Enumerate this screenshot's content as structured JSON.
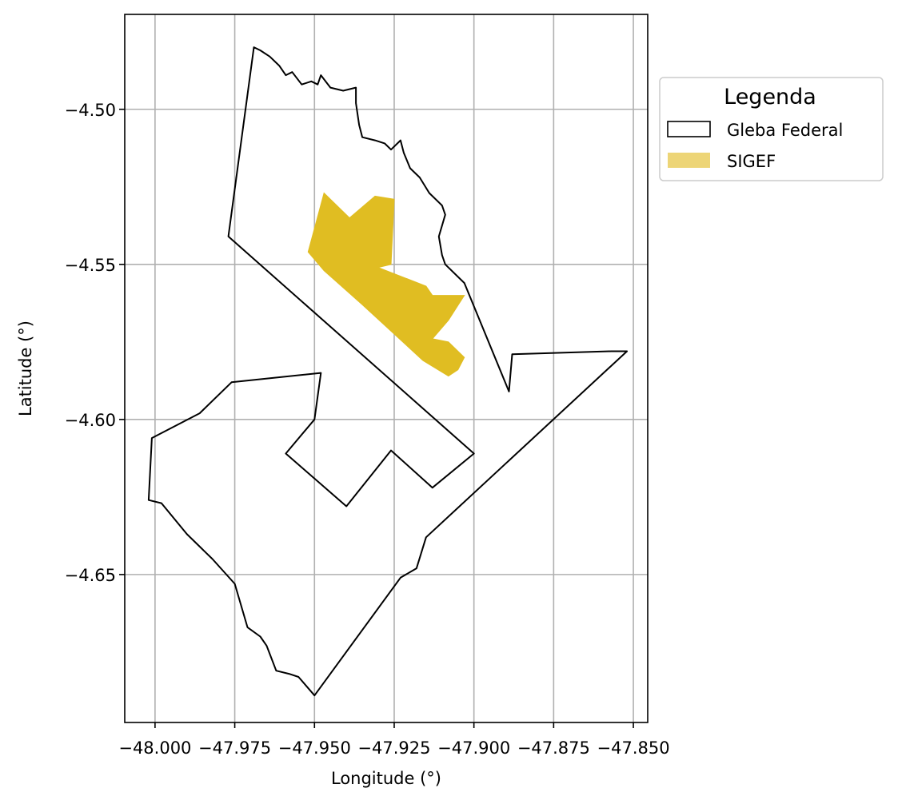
{
  "chart_data": {
    "type": "map",
    "xlabel": "Longitude (°)",
    "ylabel": "Latitude (°)",
    "xlim": [
      -48.0095,
      -47.8455
    ],
    "ylim": [
      -4.6977,
      -4.4694
    ],
    "xticks": [
      -48.0,
      -47.975,
      -47.95,
      -47.925,
      -47.9,
      -47.875,
      -47.85
    ],
    "xtick_labels": [
      "−48.000",
      "−47.975",
      "−47.950",
      "−47.925",
      "−47.900",
      "−47.875",
      "−47.850"
    ],
    "yticks": [
      -4.5,
      -4.55,
      -4.6,
      -4.65
    ],
    "ytick_labels": [
      "−4.50",
      "−4.55",
      "−4.60",
      "−4.65"
    ],
    "grid": true,
    "legend": {
      "title": "Legenda",
      "placement": "outside-upper-right",
      "entries": [
        {
          "label": "Gleba Federal",
          "style": "outline",
          "color": "#000000"
        },
        {
          "label": "SIGEF",
          "style": "fill",
          "color": "#EDD577"
        }
      ]
    },
    "layers": [
      {
        "name": "Gleba Federal",
        "kind": "outline",
        "stroke": "#000000",
        "polygons": [
          [
            [
              -47.969,
              -4.48
            ],
            [
              -47.967,
              -4.481
            ],
            [
              -47.964,
              -4.483
            ],
            [
              -47.961,
              -4.486
            ],
            [
              -47.959,
              -4.489
            ],
            [
              -47.957,
              -4.488
            ],
            [
              -47.954,
              -4.492
            ],
            [
              -47.951,
              -4.491
            ],
            [
              -47.949,
              -4.492
            ],
            [
              -47.948,
              -4.489
            ],
            [
              -47.945,
              -4.493
            ],
            [
              -47.941,
              -4.494
            ],
            [
              -47.937,
              -4.493
            ],
            [
              -47.937,
              -4.498
            ],
            [
              -47.936,
              -4.505
            ],
            [
              -47.935,
              -4.509
            ],
            [
              -47.931,
              -4.51
            ],
            [
              -47.928,
              -4.511
            ],
            [
              -47.926,
              -4.513
            ],
            [
              -47.923,
              -4.51
            ],
            [
              -47.922,
              -4.514
            ],
            [
              -47.92,
              -4.519
            ],
            [
              -47.917,
              -4.522
            ],
            [
              -47.914,
              -4.527
            ],
            [
              -47.91,
              -4.531
            ],
            [
              -47.909,
              -4.534
            ],
            [
              -47.911,
              -4.541
            ],
            [
              -47.91,
              -4.547
            ],
            [
              -47.909,
              -4.55
            ],
            [
              -47.903,
              -4.556
            ],
            [
              -47.889,
              -4.591
            ],
            [
              -47.888,
              -4.579
            ],
            [
              -47.857,
              -4.578
            ],
            [
              -47.852,
              -4.578
            ],
            [
              -47.915,
              -4.638
            ],
            [
              -47.918,
              -4.648
            ],
            [
              -47.923,
              -4.651
            ],
            [
              -47.95,
              -4.689
            ],
            [
              -47.955,
              -4.683
            ],
            [
              -47.958,
              -4.682
            ],
            [
              -47.962,
              -4.681
            ],
            [
              -47.965,
              -4.673
            ],
            [
              -47.967,
              -4.67
            ],
            [
              -47.971,
              -4.667
            ],
            [
              -47.975,
              -4.653
            ],
            [
              -47.982,
              -4.645
            ],
            [
              -47.99,
              -4.637
            ],
            [
              -47.998,
              -4.627
            ],
            [
              -48.002,
              -4.626
            ],
            [
              -48.001,
              -4.606
            ],
            [
              -47.986,
              -4.598
            ],
            [
              -47.976,
              -4.588
            ],
            [
              -47.948,
              -4.585
            ],
            [
              -47.95,
              -4.6
            ],
            [
              -47.959,
              -4.611
            ],
            [
              -47.94,
              -4.628
            ],
            [
              -47.926,
              -4.61
            ],
            [
              -47.913,
              -4.622
            ],
            [
              -47.9,
              -4.611
            ],
            [
              -47.977,
              -4.541
            ]
          ]
        ]
      },
      {
        "name": "SIGEF",
        "kind": "fill",
        "fill": "#E0BD22",
        "polygons": [
          [
            [
              -47.947,
              -4.527
            ],
            [
              -47.939,
              -4.535
            ],
            [
              -47.931,
              -4.528
            ],
            [
              -47.925,
              -4.529
            ],
            [
              -47.926,
              -4.55
            ],
            [
              -47.93,
              -4.551
            ],
            [
              -47.915,
              -4.557
            ],
            [
              -47.913,
              -4.56
            ],
            [
              -47.909,
              -4.56
            ],
            [
              -47.903,
              -4.56
            ],
            [
              -47.908,
              -4.568
            ],
            [
              -47.913,
              -4.574
            ],
            [
              -47.908,
              -4.575
            ],
            [
              -47.903,
              -4.58
            ],
            [
              -47.905,
              -4.584
            ],
            [
              -47.908,
              -4.586
            ],
            [
              -47.916,
              -4.581
            ],
            [
              -47.935,
              -4.563
            ],
            [
              -47.947,
              -4.552
            ],
            [
              -47.952,
              -4.546
            ]
          ]
        ]
      }
    ]
  }
}
